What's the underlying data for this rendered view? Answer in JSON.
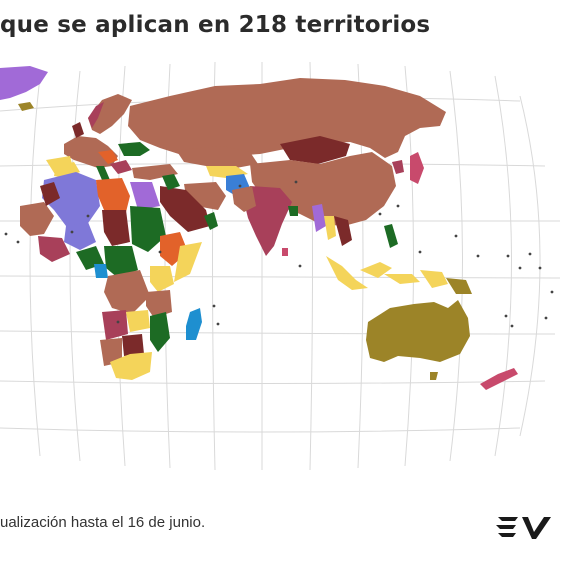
{
  "header": {
    "title": "que se aplican en 218 territorios"
  },
  "map": {
    "regions": [
      {
        "name": "north-america-fragment",
        "color": "#a16ad7"
      },
      {
        "name": "europe-north",
        "color": "#b06a55"
      },
      {
        "name": "russia",
        "color": "#b06a55"
      },
      {
        "name": "mongolia",
        "color": "#7b2a2a"
      },
      {
        "name": "china",
        "color": "#b06a55"
      },
      {
        "name": "india",
        "color": "#a8405a"
      },
      {
        "name": "australia",
        "color": "#9c8428"
      },
      {
        "name": "new-zealand",
        "color": "#c84a6c"
      },
      {
        "name": "madagascar",
        "color": "#1e8fd0"
      },
      {
        "name": "indonesia",
        "color": "#f4d45a"
      },
      {
        "name": "west-africa-group",
        "color": "#7f78d8"
      },
      {
        "name": "central-africa",
        "color": "#1d6b24"
      },
      {
        "name": "south-africa",
        "color": "#f4d45a"
      }
    ]
  },
  "footer": {
    "note": "ualización hasta el 16 de junio.",
    "logo_text": "EV"
  }
}
